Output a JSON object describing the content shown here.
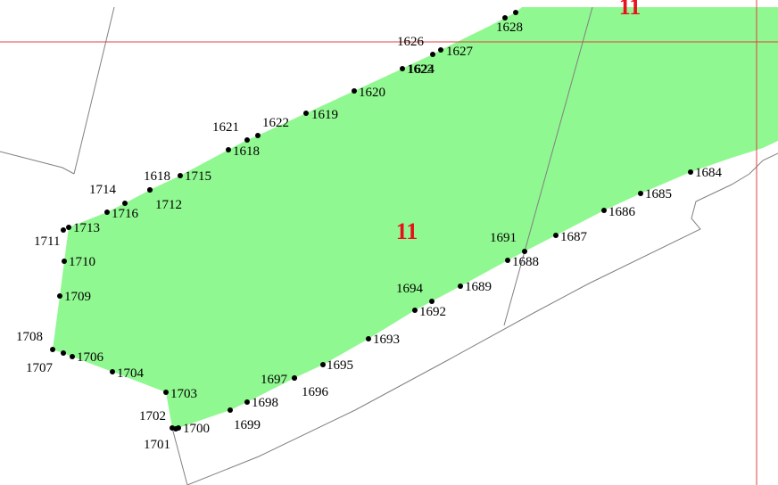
{
  "map": {
    "parcel_fill": "#90f890",
    "parcel_label_color": "#e8101c",
    "grid_line_color": "#e04040",
    "boundary_color": "#808080",
    "point_color": "#000000",
    "parcel_label": "11",
    "parcel_label_top": "11",
    "points": [
      "1628",
      "1626",
      "1627",
      "1624",
      "1623",
      "1620",
      "1621",
      "1622",
      "1619",
      "1618",
      "1618",
      "1715",
      "1714",
      "1716",
      "1712",
      "1713",
      "1711",
      "1710",
      "1709",
      "1708",
      "1707",
      "1706",
      "1704",
      "1703",
      "1702",
      "1701",
      "1700",
      "1699",
      "1698",
      "1697",
      "1696",
      "1695",
      "1693",
      "1694",
      "1692",
      "1689",
      "1691",
      "1688",
      "1687",
      "1686",
      "1685",
      "1684"
    ]
  }
}
